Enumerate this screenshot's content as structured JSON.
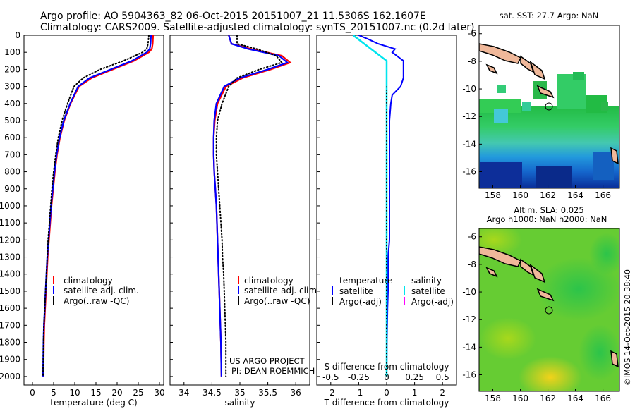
{
  "title_line1": "Argo profile: AO 5904363_82 06-Oct-2015 20151007_21 11.5306S 162.1607E",
  "title_line2": "Climatology: CARS2009. Satellite-adjusted climatology: synTS_20151007.nc (0.2d later)",
  "watermark": "©IMOS 14-Oct-2015 20:38:40",
  "project_line1": "US ARGO PROJECT",
  "project_line2": "PI: DEAN ROEMMICH",
  "colors": {
    "climatology": "#ff0000",
    "satellite_adj": "#0000ff",
    "argo": "#000000",
    "salinity_satellite": "#00e5ee",
    "salinity_argo": "#ff00ff"
  },
  "chart_data": [
    {
      "type": "line",
      "panel": "temperature",
      "xlabel": "temperature (deg C)",
      "ylabel": "",
      "xlim": [
        -2,
        31
      ],
      "ylim": [
        2050,
        0
      ],
      "xticks": [
        0,
        5,
        10,
        15,
        20,
        25,
        30
      ],
      "xtick_labels": [
        "0",
        "5",
        "10",
        "15",
        "20",
        "25",
        "30"
      ],
      "yticks": [
        0,
        100,
        200,
        300,
        400,
        500,
        600,
        700,
        800,
        900,
        1000,
        1100,
        1200,
        1300,
        1400,
        1500,
        1600,
        1700,
        1800,
        1900,
        2000
      ],
      "ytick_labels": [
        "0",
        "100",
        "200",
        "300",
        "400",
        "500",
        "600",
        "700",
        "800",
        "900",
        "1000",
        "1100",
        "1200",
        "1300",
        "1400",
        "1500",
        "1600",
        "1700",
        "1800",
        "1900",
        "2000"
      ],
      "legend": [
        "climatology",
        "satellite-adj. clim.",
        "Argo(..raw -QC)"
      ],
      "series": [
        {
          "name": "climatology",
          "style": "solid",
          "x": [
            28.5,
            28.4,
            28.2,
            27.5,
            24.0,
            19.0,
            14.0,
            11.0,
            9.0,
            7.5,
            6.5,
            5.8,
            5.3,
            4.9,
            4.5,
            4.2,
            3.9,
            3.6,
            3.4,
            3.2,
            3.0,
            2.8,
            2.7,
            2.6
          ],
          "y": [
            0,
            50,
            80,
            100,
            150,
            200,
            250,
            300,
            400,
            500,
            600,
            700,
            800,
            900,
            1000,
            1100,
            1200,
            1300,
            1400,
            1500,
            1600,
            1700,
            1800,
            2000
          ]
        },
        {
          "name": "satellite-adj. clim.",
          "style": "solid",
          "x": [
            28.0,
            27.9,
            27.7,
            27.0,
            23.5,
            18.5,
            13.5,
            10.8,
            8.9,
            7.4,
            6.4,
            5.7,
            5.2,
            4.8,
            4.4,
            4.1,
            3.8,
            3.5,
            3.3,
            3.1,
            2.9,
            2.7,
            2.6,
            2.5
          ],
          "y": [
            0,
            50,
            80,
            100,
            150,
            200,
            250,
            300,
            400,
            500,
            600,
            700,
            800,
            900,
            1000,
            1100,
            1200,
            1300,
            1400,
            1500,
            1600,
            1700,
            1800,
            2000
          ]
        },
        {
          "name": "Argo(..raw -QC)",
          "style": "dotted",
          "x": [
            27.5,
            27.3,
            27.0,
            26.0,
            21.5,
            16.0,
            12.0,
            9.8,
            8.3,
            7.0,
            6.1,
            5.5,
            5.0,
            4.6,
            4.3,
            4.0,
            3.7,
            3.5,
            3.3,
            3.1,
            2.9,
            2.7,
            2.6,
            2.5
          ],
          "y": [
            0,
            50,
            80,
            100,
            150,
            200,
            250,
            300,
            400,
            500,
            600,
            700,
            800,
            900,
            1000,
            1100,
            1200,
            1300,
            1400,
            1500,
            1600,
            1700,
            1800,
            2000
          ]
        }
      ]
    },
    {
      "type": "line",
      "panel": "salinity",
      "xlabel": "salinity",
      "ylabel": "",
      "xlim": [
        33.75,
        36.25
      ],
      "ylim": [
        2050,
        0
      ],
      "xticks": [
        34,
        34.5,
        35,
        35.5,
        36
      ],
      "xtick_labels": [
        "34",
        "34.5",
        "35",
        "35.5",
        "36"
      ],
      "legend": [
        "climatology",
        "satellite-adj. clim.",
        "Argo(..raw -QC)"
      ],
      "series": [
        {
          "name": "climatology",
          "style": "solid",
          "x": [
            34.8,
            34.85,
            35.2,
            35.75,
            35.9,
            35.55,
            35.05,
            34.75,
            34.6,
            34.55,
            34.53,
            34.53,
            34.54,
            34.56,
            34.58,
            34.59,
            34.6,
            34.61,
            34.62,
            34.63,
            34.64,
            34.65,
            34.66,
            34.67
          ],
          "y": [
            0,
            50,
            80,
            120,
            160,
            200,
            250,
            300,
            400,
            500,
            600,
            700,
            800,
            900,
            1000,
            1100,
            1200,
            1300,
            1400,
            1500,
            1600,
            1700,
            1800,
            2000
          ]
        },
        {
          "name": "satellite-adj. clim.",
          "style": "solid",
          "x": [
            34.8,
            34.85,
            35.15,
            35.7,
            35.85,
            35.5,
            35.0,
            34.72,
            34.58,
            34.54,
            34.53,
            34.53,
            34.54,
            34.56,
            34.58,
            34.59,
            34.6,
            34.61,
            34.62,
            34.63,
            34.64,
            34.65,
            34.66,
            34.67
          ],
          "y": [
            0,
            50,
            80,
            120,
            160,
            200,
            250,
            300,
            400,
            500,
            600,
            700,
            800,
            900,
            1000,
            1100,
            1200,
            1300,
            1400,
            1500,
            1600,
            1700,
            1800,
            2000
          ]
        },
        {
          "name": "Argo(..raw -QC)",
          "style": "dotted",
          "x": [
            34.95,
            34.95,
            35.3,
            35.65,
            35.75,
            35.35,
            34.95,
            34.8,
            34.68,
            34.6,
            34.58,
            34.58,
            34.6,
            34.62,
            34.64,
            34.66,
            34.68,
            34.69,
            34.71,
            34.72,
            34.73,
            34.74,
            34.75,
            34.75
          ],
          "y": [
            0,
            50,
            80,
            120,
            160,
            200,
            250,
            300,
            400,
            500,
            600,
            700,
            800,
            900,
            1000,
            1100,
            1200,
            1300,
            1400,
            1500,
            1600,
            1700,
            1800,
            2000
          ]
        }
      ]
    },
    {
      "type": "line",
      "panel": "difference",
      "xlabel": "T difference from climatology",
      "xlabel_top": "S difference from climatology",
      "xlim": [
        -2.5,
        2.5
      ],
      "ylim": [
        2050,
        0
      ],
      "xticks": [
        -2,
        -1,
        0,
        1,
        2
      ],
      "xtick_labels": [
        "-2",
        "-1",
        "0",
        "1",
        "2"
      ],
      "sticks": [
        -0.5,
        -0.25,
        0,
        0.25,
        0.5
      ],
      "stick_labels": [
        "-0.5",
        "-0.25",
        "0",
        "0.25",
        "0.5"
      ],
      "legend_headers": [
        "temperature",
        "salinity"
      ],
      "legend": [
        "satellite",
        "Argo(-adj)",
        "satellite",
        "Argo(-adj)"
      ],
      "series": [
        {
          "name": "satellite",
          "variable": "temperature",
          "style": "solid",
          "x": [
            -1.0,
            -0.7,
            -0.3,
            0.3,
            0.2,
            0.6,
            0.6,
            0.5,
            0.2,
            0.15,
            0.1,
            0.1,
            0.1,
            0.1,
            0.1,
            0.1,
            0.1,
            0.05,
            0.05,
            0.05,
            0.03,
            0.02,
            0.01,
            0.0
          ],
          "y": [
            0,
            20,
            50,
            80,
            100,
            150,
            250,
            300,
            350,
            400,
            500,
            600,
            700,
            800,
            900,
            1000,
            1200,
            1300,
            1400,
            1500,
            1600,
            1700,
            1800,
            2000
          ]
        },
        {
          "name": "satellite",
          "variable": "salinity",
          "style": "solid",
          "x": [
            -0.3,
            -0.2,
            -0.1,
            0.0,
            0.0,
            0.0,
            0.0,
            0.0,
            0.0,
            0.0,
            0.0
          ],
          "y": [
            0,
            50,
            100,
            150,
            200,
            400,
            600,
            800,
            1200,
            1600,
            2000
          ]
        },
        {
          "name": "Argo(-adj)",
          "variable": "temperature",
          "style": "dotted",
          "x": [
            0.0,
            0.0
          ],
          "y": [
            300,
            2000
          ]
        }
      ]
    }
  ],
  "maps": [
    {
      "title_line1": "sat. SST: 27.7 Argo: NaN",
      "title_line2": "",
      "xticks": [
        158,
        160,
        162,
        164,
        166
      ],
      "xtick_labels": [
        "158",
        "160",
        "162",
        "164",
        "166"
      ],
      "yticks": [
        -6,
        -8,
        -10,
        -12,
        -14,
        -16
      ],
      "ytick_labels": [
        "-6",
        "-8",
        "-10",
        "-12",
        "-14",
        "-16"
      ],
      "xlim": [
        157,
        167.2
      ],
      "ylim": [
        -17.2,
        -5.4
      ],
      "marker": {
        "lon": 162.16,
        "lat": -11.53
      }
    },
    {
      "title_line1": "Altim. SLA: 0.025",
      "title_line2": "Argo h1000: NaN h2000: NaN",
      "xticks": [
        158,
        160,
        162,
        164,
        166
      ],
      "xtick_labels": [
        "158",
        "160",
        "162",
        "164",
        "166"
      ],
      "yticks": [
        -6,
        -8,
        -10,
        -12,
        -14,
        -16
      ],
      "ytick_labels": [
        "-6",
        "-8",
        "-10",
        "-12",
        "-14",
        "-16"
      ],
      "xlim": [
        157,
        167.2
      ],
      "ylim": [
        -17.2,
        -5.4
      ],
      "marker": {
        "lon": 162.16,
        "lat": -11.53
      }
    }
  ]
}
